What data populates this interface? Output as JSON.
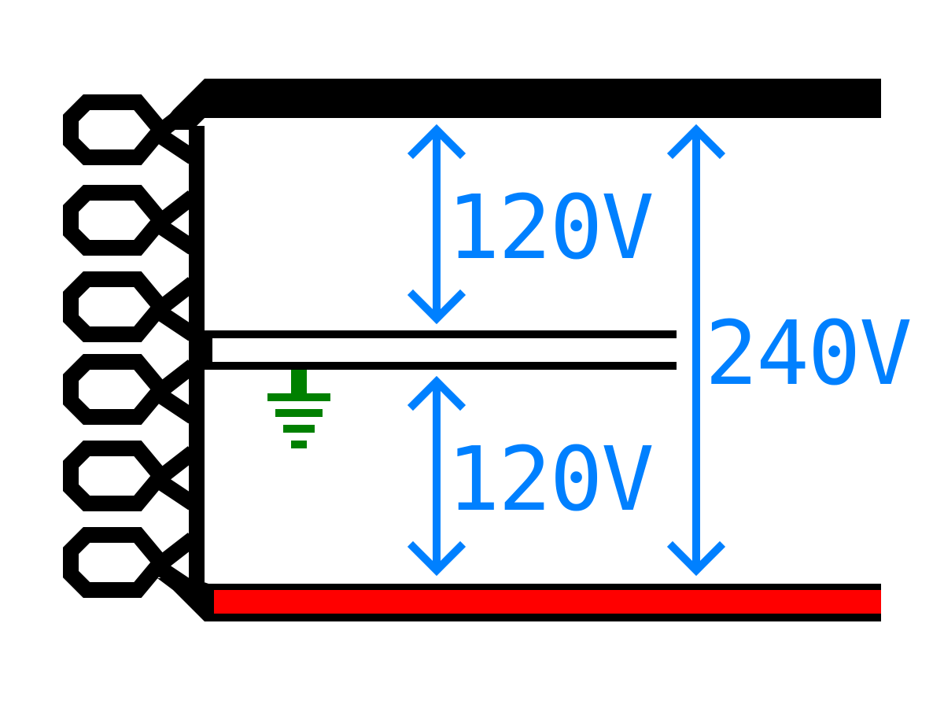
{
  "diagram": {
    "labels": {
      "upper_leg": "120V",
      "lower_leg": "120V",
      "total": "240V"
    },
    "colors": {
      "background": "#ffffff",
      "winding": "#000000",
      "hot_leg_top": "#000000",
      "hot_leg_bottom": "#ff0000",
      "neutral": "#000000",
      "ground": "#008000",
      "dimension": "#0080ff"
    },
    "icons": {
      "ground": "ground-icon",
      "coil": "transformer-coil-icon"
    }
  }
}
